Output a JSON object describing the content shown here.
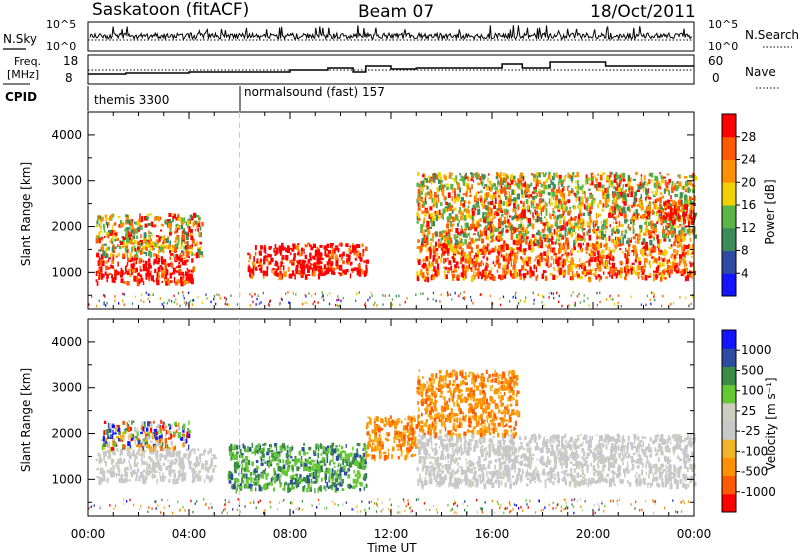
{
  "header": {
    "station": "Saskatoon (fitACF)",
    "beam": "Beam 07",
    "date": "18/Oct/2011"
  },
  "noise_panel": {
    "left_label": "N.Sky",
    "right_label": "N.Search",
    "ticks_left": [
      "10^5",
      "10^0"
    ],
    "ticks_right": [
      "10^5",
      "10^0"
    ]
  },
  "freq_panel": {
    "left_label_1": "Freq.",
    "left_label_2": "[MHz]",
    "ticks_left": [
      "18",
      "8"
    ],
    "right_label": "Nave",
    "ticks_right": [
      "60",
      "0"
    ]
  },
  "cpid": {
    "label": "CPID",
    "entries": [
      {
        "start_hour": 0,
        "text": "themis 3300"
      },
      {
        "start_hour": 6,
        "text": "normalsound (fast) 157"
      }
    ]
  },
  "colors": {
    "power": [
      "#1414ff",
      "#2d4ba0",
      "#3c8c5a",
      "#5ab446",
      "#f0d200",
      "#ff9100",
      "#ff5a00",
      "#ff0000"
    ],
    "velocity": [
      "#ff0000",
      "#ff5a00",
      "#ff9100",
      "#f0b428",
      "#c8c8c8",
      "#cdcdbe",
      "#64c832",
      "#3c8c46",
      "#2d4ba0",
      "#1414ff"
    ]
  },
  "chart_data": [
    {
      "type": "heatmap",
      "title": "Power",
      "xlabel": "Time UT",
      "ylabel": "Slant Range [km]",
      "xlim": [
        0,
        24
      ],
      "ylim": [
        200,
        4500
      ],
      "x_ticks": [
        "00:00",
        "04:00",
        "08:00",
        "12:00",
        "16:00",
        "20:00",
        "00:00"
      ],
      "y_ticks": [
        1000,
        2000,
        3000,
        4000
      ],
      "colorbar": {
        "label": "Power [dB]",
        "ticks": [
          "4",
          "8",
          "12",
          "16",
          "20",
          "24",
          "28"
        ]
      },
      "regions": [
        {
          "x": [
            0.3,
            4.2
          ],
          "y": [
            800,
            1400
          ],
          "level": "strong"
        },
        {
          "x": [
            0.3,
            4.5
          ],
          "y": [
            1400,
            2300
          ],
          "level": "mixed"
        },
        {
          "x": [
            6.3,
            11.0
          ],
          "y": [
            950,
            1650
          ],
          "level": "strong"
        },
        {
          "x": [
            13.0,
            24.0
          ],
          "y": [
            900,
            1700
          ],
          "level": "moderate"
        },
        {
          "x": [
            13.0,
            24.0
          ],
          "y": [
            1700,
            3200
          ],
          "level": "mixed"
        },
        {
          "x": [
            22.5,
            24.0
          ],
          "y": [
            2100,
            2600
          ],
          "level": "strong"
        }
      ]
    },
    {
      "type": "heatmap",
      "title": "Velocity",
      "xlabel": "Time UT",
      "ylabel": "Slant Range [km]",
      "xlim": [
        0,
        24
      ],
      "ylim": [
        200,
        4500
      ],
      "x_ticks": [
        "00:00",
        "04:00",
        "08:00",
        "12:00",
        "16:00",
        "20:00",
        "00:00"
      ],
      "y_ticks": [
        1000,
        2000,
        3000,
        4000
      ],
      "colorbar": {
        "label": "Velocity [m s⁻¹]",
        "ticks": [
          "1000",
          "500",
          "100",
          "25",
          "-25",
          "-100",
          "-500",
          "-1000"
        ]
      },
      "regions": [
        {
          "x": [
            0.3,
            5.0
          ],
          "y": [
            1000,
            1700
          ],
          "level": "ground_scatter"
        },
        {
          "x": [
            0.5,
            4.0
          ],
          "y": [
            1700,
            2300
          ],
          "level": "mixed"
        },
        {
          "x": [
            5.5,
            11.0
          ],
          "y": [
            800,
            1800
          ],
          "level": "positive"
        },
        {
          "x": [
            11.0,
            13.0
          ],
          "y": [
            1500,
            2400
          ],
          "level": "negative"
        },
        {
          "x": [
            13.0,
            24.0
          ],
          "y": [
            900,
            2000
          ],
          "level": "ground_scatter"
        },
        {
          "x": [
            13.0,
            17.0
          ],
          "y": [
            2000,
            3400
          ],
          "level": "negative"
        }
      ]
    }
  ]
}
